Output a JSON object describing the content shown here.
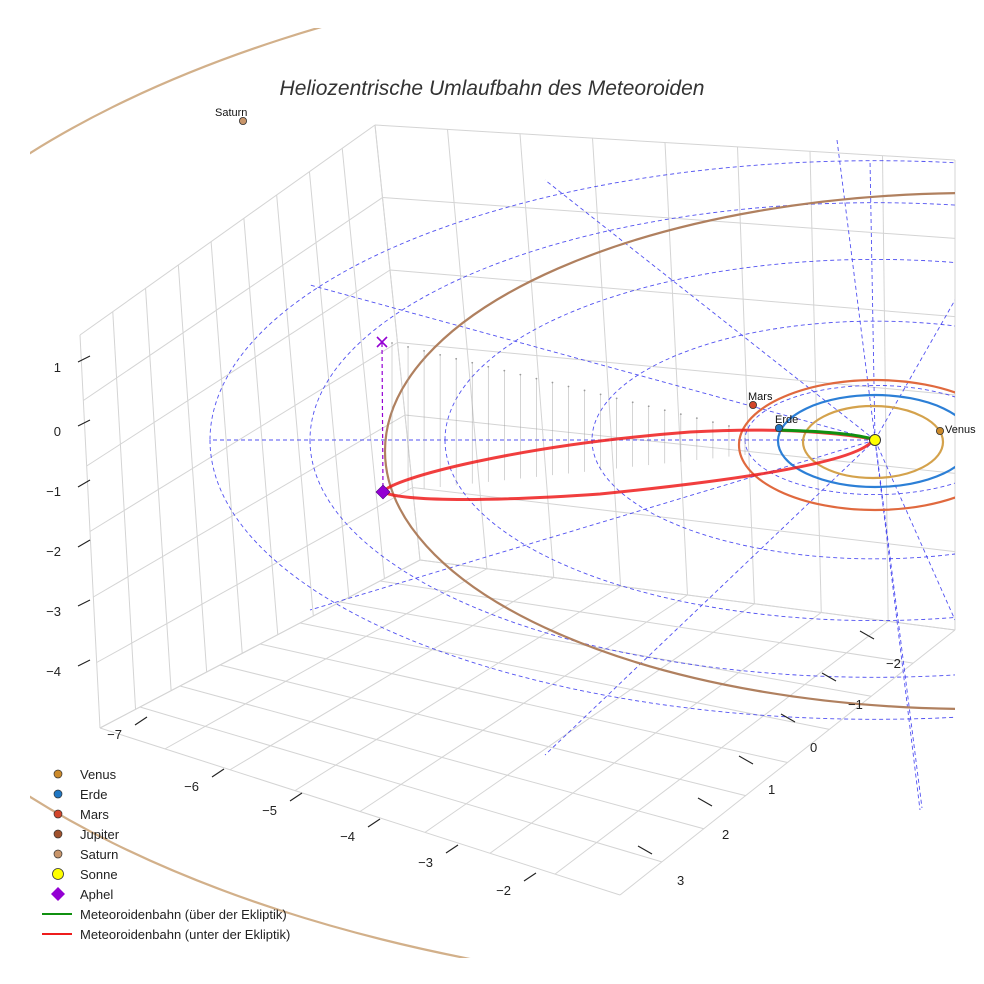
{
  "chart_data": {
    "type": "scatter3d",
    "title": "Heliozentrische Umlaufbahn des Meteoroiden",
    "axes": {
      "x": {
        "ticks": [
          "−7",
          "−6",
          "−5",
          "−4",
          "−3",
          "−2"
        ]
      },
      "y": {
        "ticks": [
          "−2",
          "−1",
          "0",
          "1",
          "2",
          "3"
        ]
      },
      "z": {
        "ticks": [
          "1",
          "0",
          "−1",
          "−2",
          "−3",
          "−4"
        ]
      }
    },
    "grid": true,
    "ecliptic_grid": {
      "style": "dashed",
      "color": "#3333ee"
    },
    "planets": [
      {
        "name": "Venus",
        "label": "Venus",
        "color": "#cc8a2a",
        "orbit_radius_au": 0.72,
        "orbit_color": "#d4a24c"
      },
      {
        "name": "Erde",
        "label": "Erde",
        "color": "#1f77c4",
        "orbit_radius_au": 1.0,
        "orbit_color": "#2c7fd6"
      },
      {
        "name": "Mars",
        "label": "Mars",
        "color": "#d2452a",
        "orbit_radius_au": 1.52,
        "orbit_color": "#e0693e"
      },
      {
        "name": "Jupiter",
        "label": "",
        "color": "#a0522d",
        "orbit_radius_au": 5.2,
        "orbit_color": "#b0805f"
      },
      {
        "name": "Saturn",
        "label": "Saturn",
        "color": "#c8956a",
        "orbit_radius_au": 9.54,
        "orbit_color": "#d2b08a"
      }
    ],
    "sun": {
      "name": "Sonne",
      "color": "#ffff00",
      "position": [
        0,
        0,
        0
      ]
    },
    "aphel": {
      "name": "Aphel",
      "color": "#9400d3"
    },
    "trajectory_segments": [
      {
        "name": "Meteoroidenbahn (über der Ekliptik)",
        "color": "#109010"
      },
      {
        "name": "Meteoroidenbahn (unter der Ekliptik)",
        "color": "#ee1c1c"
      }
    ],
    "legend": {
      "position": "bottom-left",
      "entries": [
        {
          "label": "Venus",
          "symbol": "circle",
          "color": "#cc8a2a"
        },
        {
          "label": "Erde",
          "symbol": "circle",
          "color": "#1f77c4"
        },
        {
          "label": "Mars",
          "symbol": "circle",
          "color": "#d2452a"
        },
        {
          "label": "Jupiter",
          "symbol": "circle",
          "color": "#a0522d"
        },
        {
          "label": "Saturn",
          "symbol": "circle",
          "color": "#c8956a"
        },
        {
          "label": "Sonne",
          "symbol": "circle-large",
          "color": "#ffff00"
        },
        {
          "label": "Aphel",
          "symbol": "diamond",
          "color": "#9400d3"
        },
        {
          "label": "Meteoroidenbahn (über der Ekliptik)",
          "symbol": "line",
          "color": "#109010"
        },
        {
          "label": "Meteoroidenbahn (unter der Ekliptik)",
          "symbol": "line",
          "color": "#ee1c1c"
        }
      ]
    }
  }
}
